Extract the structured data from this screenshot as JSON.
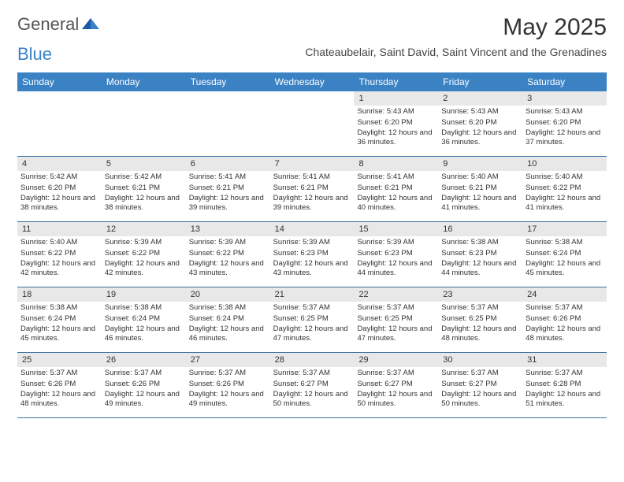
{
  "logo": {
    "part1": "General",
    "part2": "Blue"
  },
  "title": "May 2025",
  "location": "Chateaubelair, Saint David, Saint Vincent and the Grenadines",
  "colors": {
    "header_bg": "#3b82c4",
    "band_bg": "#e8e8e8",
    "page_bg": "#ffffff",
    "text": "#333333",
    "border": "#3b6fa0"
  },
  "dayHeaders": [
    "Sunday",
    "Monday",
    "Tuesday",
    "Wednesday",
    "Thursday",
    "Friday",
    "Saturday"
  ],
  "weeks": [
    [
      null,
      null,
      null,
      null,
      {
        "n": "1",
        "sr": "5:43 AM",
        "ss": "6:20 PM",
        "dl": "12 hours and 36 minutes."
      },
      {
        "n": "2",
        "sr": "5:43 AM",
        "ss": "6:20 PM",
        "dl": "12 hours and 36 minutes."
      },
      {
        "n": "3",
        "sr": "5:43 AM",
        "ss": "6:20 PM",
        "dl": "12 hours and 37 minutes."
      }
    ],
    [
      {
        "n": "4",
        "sr": "5:42 AM",
        "ss": "6:20 PM",
        "dl": "12 hours and 38 minutes."
      },
      {
        "n": "5",
        "sr": "5:42 AM",
        "ss": "6:21 PM",
        "dl": "12 hours and 38 minutes."
      },
      {
        "n": "6",
        "sr": "5:41 AM",
        "ss": "6:21 PM",
        "dl": "12 hours and 39 minutes."
      },
      {
        "n": "7",
        "sr": "5:41 AM",
        "ss": "6:21 PM",
        "dl": "12 hours and 39 minutes."
      },
      {
        "n": "8",
        "sr": "5:41 AM",
        "ss": "6:21 PM",
        "dl": "12 hours and 40 minutes."
      },
      {
        "n": "9",
        "sr": "5:40 AM",
        "ss": "6:21 PM",
        "dl": "12 hours and 41 minutes."
      },
      {
        "n": "10",
        "sr": "5:40 AM",
        "ss": "6:22 PM",
        "dl": "12 hours and 41 minutes."
      }
    ],
    [
      {
        "n": "11",
        "sr": "5:40 AM",
        "ss": "6:22 PM",
        "dl": "12 hours and 42 minutes."
      },
      {
        "n": "12",
        "sr": "5:39 AM",
        "ss": "6:22 PM",
        "dl": "12 hours and 42 minutes."
      },
      {
        "n": "13",
        "sr": "5:39 AM",
        "ss": "6:22 PM",
        "dl": "12 hours and 43 minutes."
      },
      {
        "n": "14",
        "sr": "5:39 AM",
        "ss": "6:23 PM",
        "dl": "12 hours and 43 minutes."
      },
      {
        "n": "15",
        "sr": "5:39 AM",
        "ss": "6:23 PM",
        "dl": "12 hours and 44 minutes."
      },
      {
        "n": "16",
        "sr": "5:38 AM",
        "ss": "6:23 PM",
        "dl": "12 hours and 44 minutes."
      },
      {
        "n": "17",
        "sr": "5:38 AM",
        "ss": "6:24 PM",
        "dl": "12 hours and 45 minutes."
      }
    ],
    [
      {
        "n": "18",
        "sr": "5:38 AM",
        "ss": "6:24 PM",
        "dl": "12 hours and 45 minutes."
      },
      {
        "n": "19",
        "sr": "5:38 AM",
        "ss": "6:24 PM",
        "dl": "12 hours and 46 minutes."
      },
      {
        "n": "20",
        "sr": "5:38 AM",
        "ss": "6:24 PM",
        "dl": "12 hours and 46 minutes."
      },
      {
        "n": "21",
        "sr": "5:37 AM",
        "ss": "6:25 PM",
        "dl": "12 hours and 47 minutes."
      },
      {
        "n": "22",
        "sr": "5:37 AM",
        "ss": "6:25 PM",
        "dl": "12 hours and 47 minutes."
      },
      {
        "n": "23",
        "sr": "5:37 AM",
        "ss": "6:25 PM",
        "dl": "12 hours and 48 minutes."
      },
      {
        "n": "24",
        "sr": "5:37 AM",
        "ss": "6:26 PM",
        "dl": "12 hours and 48 minutes."
      }
    ],
    [
      {
        "n": "25",
        "sr": "5:37 AM",
        "ss": "6:26 PM",
        "dl": "12 hours and 48 minutes."
      },
      {
        "n": "26",
        "sr": "5:37 AM",
        "ss": "6:26 PM",
        "dl": "12 hours and 49 minutes."
      },
      {
        "n": "27",
        "sr": "5:37 AM",
        "ss": "6:26 PM",
        "dl": "12 hours and 49 minutes."
      },
      {
        "n": "28",
        "sr": "5:37 AM",
        "ss": "6:27 PM",
        "dl": "12 hours and 50 minutes."
      },
      {
        "n": "29",
        "sr": "5:37 AM",
        "ss": "6:27 PM",
        "dl": "12 hours and 50 minutes."
      },
      {
        "n": "30",
        "sr": "5:37 AM",
        "ss": "6:27 PM",
        "dl": "12 hours and 50 minutes."
      },
      {
        "n": "31",
        "sr": "5:37 AM",
        "ss": "6:28 PM",
        "dl": "12 hours and 51 minutes."
      }
    ]
  ],
  "labels": {
    "sunrise": "Sunrise:",
    "sunset": "Sunset:",
    "daylight": "Daylight:"
  }
}
